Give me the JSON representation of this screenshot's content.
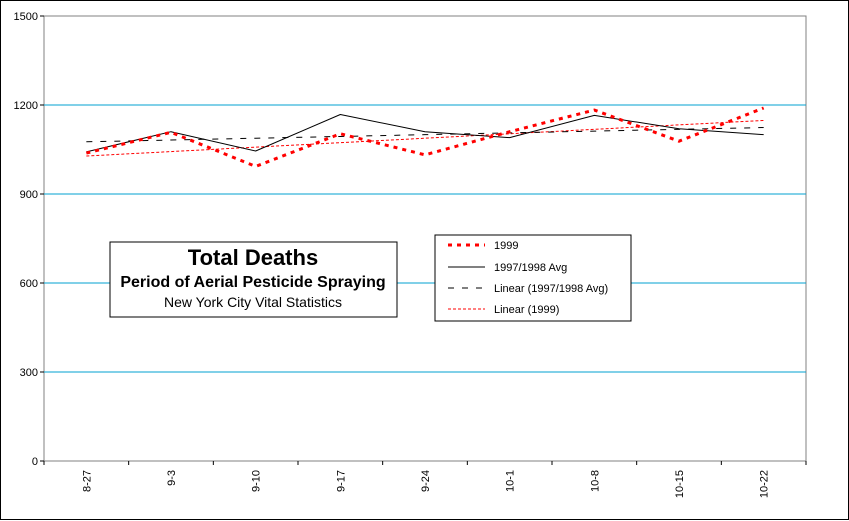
{
  "chart_data": {
    "type": "line",
    "title": "Total Deaths",
    "subtitle": "Period of Aerial Pesticide Spraying",
    "source": "New York City Vital Statistics",
    "xlabel": "",
    "ylabel": "",
    "categories": [
      "8-27",
      "9-3",
      "9-10",
      "9-17",
      "9-24",
      "10-1",
      "10-8",
      "10-15",
      "10-22"
    ],
    "ylim": [
      0,
      1500
    ],
    "yticks": [
      "0",
      "300",
      "600",
      "900",
      "1200",
      "1500"
    ],
    "grid": "horizontal",
    "legend_position": "center-right",
    "series": [
      {
        "name": "1999",
        "values": [
          1038,
          1108,
          993,
          1103,
          1032,
          1110,
          1183,
          1078,
          1190
        ],
        "color": "#ff0000",
        "style": "dotted-thick"
      },
      {
        "name": "1997/1998 Avg",
        "values": [
          1042,
          1110,
          1045,
          1168,
          1110,
          1090,
          1165,
          1120,
          1100
        ],
        "color": "#000000",
        "style": "solid"
      },
      {
        "name": "Linear (1997/1998 Avg)",
        "values": [
          1076,
          1082,
          1088,
          1094,
          1100,
          1106,
          1112,
          1118,
          1124
        ],
        "color": "#000000",
        "style": "long-dash"
      },
      {
        "name": "Linear (1999)",
        "values": [
          1028,
          1043,
          1058,
          1073,
          1088,
          1103,
          1118,
          1133,
          1148
        ],
        "color": "#ff0000",
        "style": "short-dash"
      }
    ],
    "colors": {
      "gridline": "#00a0d0",
      "background": "#ffffff"
    }
  }
}
